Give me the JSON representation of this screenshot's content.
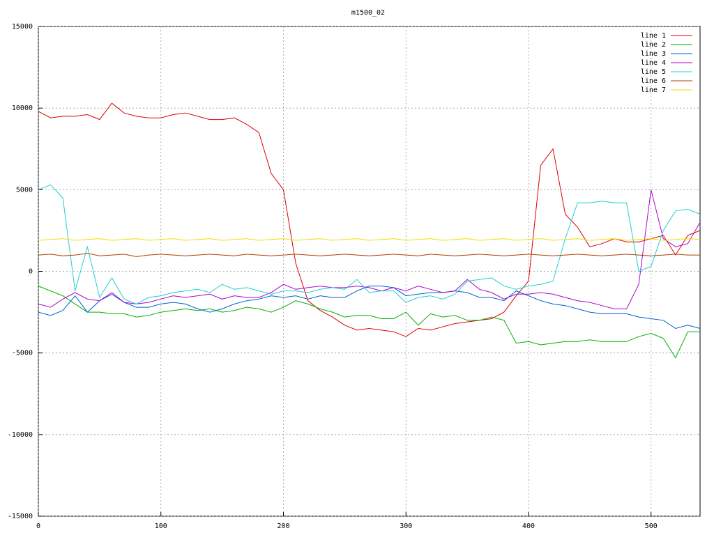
{
  "chart_data": {
    "type": "line",
    "title": "m1500_02",
    "x": [
      0,
      10,
      20,
      30,
      40,
      50,
      60,
      70,
      80,
      90,
      100,
      110,
      120,
      130,
      140,
      150,
      160,
      170,
      180,
      190,
      200,
      210,
      220,
      230,
      240,
      250,
      260,
      270,
      280,
      290,
      300,
      310,
      320,
      330,
      340,
      350,
      360,
      370,
      380,
      390,
      400,
      410,
      420,
      430,
      440,
      450,
      460,
      470,
      480,
      490,
      500,
      510,
      520,
      530,
      540
    ],
    "xlim": [
      0,
      540
    ],
    "xticks": [
      0,
      100,
      200,
      300,
      400,
      500
    ],
    "ylim": [
      -15000,
      15000
    ],
    "yticks": [
      -15000,
      -10000,
      -5000,
      0,
      5000,
      10000,
      15000
    ],
    "grid": true,
    "legend": "top-right",
    "series": [
      {
        "name": "line 1",
        "color": "#dd0000",
        "values": [
          9800,
          9400,
          9500,
          9500,
          9600,
          9300,
          10300,
          9700,
          9500,
          9400,
          9400,
          9600,
          9700,
          9500,
          9300,
          9300,
          9400,
          9000,
          8500,
          6000,
          5000,
          500,
          -1800,
          -2400,
          -2800,
          -3300,
          -3600,
          -3500,
          -3600,
          -3700,
          -4000,
          -3500,
          -3600,
          -3400,
          -3200,
          -3100,
          -3000,
          -2900,
          -2500,
          -1500,
          -600,
          6500,
          7500,
          3500,
          2700,
          1500,
          1700,
          2000,
          1800,
          1800,
          2000,
          2200,
          1000,
          2200,
          2500
        ]
      },
      {
        "name": "line 2",
        "color": "#00b000",
        "values": [
          -900,
          -1200,
          -1500,
          -2000,
          -2500,
          -2500,
          -2600,
          -2600,
          -2800,
          -2700,
          -2500,
          -2400,
          -2300,
          -2400,
          -2300,
          -2500,
          -2400,
          -2200,
          -2300,
          -2500,
          -2200,
          -1800,
          -2000,
          -2300,
          -2500,
          -2800,
          -2700,
          -2700,
          -2900,
          -2900,
          -2500,
          -3300,
          -2600,
          -2800,
          -2700,
          -3000,
          -3000,
          -2800,
          -3000,
          -4400,
          -4300,
          -4500,
          -4400,
          -4300,
          -4300,
          -4200,
          -4300,
          -4300,
          -4300,
          -4000,
          -3800,
          -4100,
          -5300,
          -3700,
          -3700
        ]
      },
      {
        "name": "line 3",
        "color": "#0060d0",
        "values": [
          -2500,
          -2700,
          -2400,
          -1500,
          -2500,
          -1800,
          -1400,
          -1900,
          -2200,
          -2200,
          -2000,
          -1900,
          -2000,
          -2300,
          -2500,
          -2300,
          -2000,
          -1800,
          -1700,
          -1500,
          -1600,
          -1500,
          -1700,
          -1500,
          -1600,
          -1600,
          -1200,
          -900,
          -900,
          -1000,
          -1500,
          -1400,
          -1300,
          -1300,
          -1200,
          -1300,
          -1600,
          -1600,
          -1800,
          -1200,
          -1500,
          -1800,
          -2000,
          -2100,
          -2300,
          -2500,
          -2600,
          -2600,
          -2600,
          -2800,
          -2900,
          -3000,
          -3500,
          -3300,
          -3500
        ]
      },
      {
        "name": "line 4",
        "color": "#b000d0",
        "values": [
          -2000,
          -2200,
          -1700,
          -1300,
          -1700,
          -1800,
          -1300,
          -1900,
          -2000,
          -1900,
          -1700,
          -1500,
          -1600,
          -1500,
          -1400,
          -1700,
          -1500,
          -1600,
          -1600,
          -1300,
          -800,
          -1100,
          -1000,
          -900,
          -1000,
          -1000,
          -900,
          -1000,
          -1200,
          -1000,
          -1200,
          -900,
          -1100,
          -1300,
          -1200,
          -500,
          -1100,
          -1300,
          -1700,
          -1400,
          -1400,
          -1300,
          -1400,
          -1600,
          -1800,
          -1900,
          -2100,
          -2300,
          -2300,
          -800,
          5000,
          2000,
          1500,
          1700,
          3000
        ]
      },
      {
        "name": "line 5",
        "color": "#20d0d0",
        "values": [
          5000,
          5300,
          4500,
          -1200,
          1500,
          -1600,
          -400,
          -1700,
          -2000,
          -1600,
          -1500,
          -1300,
          -1200,
          -1100,
          -1300,
          -800,
          -1100,
          -1000,
          -1200,
          -1400,
          -1200,
          -1200,
          -1300,
          -1100,
          -1000,
          -1100,
          -500,
          -1300,
          -1200,
          -1200,
          -1900,
          -1600,
          -1500,
          -1700,
          -1400,
          -600,
          -500,
          -400,
          -900,
          -1100,
          -900,
          -800,
          -600,
          2000,
          4200,
          4200,
          4300,
          4200,
          4200,
          0,
          300,
          2500,
          3700,
          3800,
          3500
        ]
      },
      {
        "name": "line 6",
        "color": "#b04000",
        "values": [
          1000,
          1050,
          950,
          1000,
          1100,
          950,
          1000,
          1050,
          900,
          1000,
          1050,
          1000,
          950,
          1000,
          1050,
          1000,
          950,
          1050,
          1000,
          950,
          1000,
          1050,
          1000,
          950,
          1000,
          1050,
          1000,
          950,
          1000,
          1050,
          1000,
          950,
          1050,
          1000,
          950,
          1000,
          1050,
          1000,
          950,
          1000,
          1050,
          1000,
          950,
          1000,
          1050,
          1000,
          950,
          1000,
          1050,
          1000,
          950,
          1000,
          1050,
          1000,
          1000
        ]
      },
      {
        "name": "line 7",
        "color": "#f0e000",
        "values": [
          1900,
          1950,
          2000,
          1900,
          1950,
          2000,
          1900,
          1950,
          2000,
          1900,
          1950,
          2000,
          1900,
          1950,
          2000,
          1900,
          1950,
          2000,
          1900,
          1950,
          2000,
          1900,
          1950,
          2000,
          1900,
          1950,
          2000,
          1900,
          1950,
          2000,
          1900,
          1950,
          2000,
          1900,
          1950,
          2000,
          1900,
          1950,
          2000,
          1900,
          1950,
          2000,
          1900,
          1950,
          2000,
          1900,
          1950,
          2000,
          1900,
          1950,
          2000,
          1900,
          1950,
          2000,
          1950
        ]
      }
    ]
  }
}
